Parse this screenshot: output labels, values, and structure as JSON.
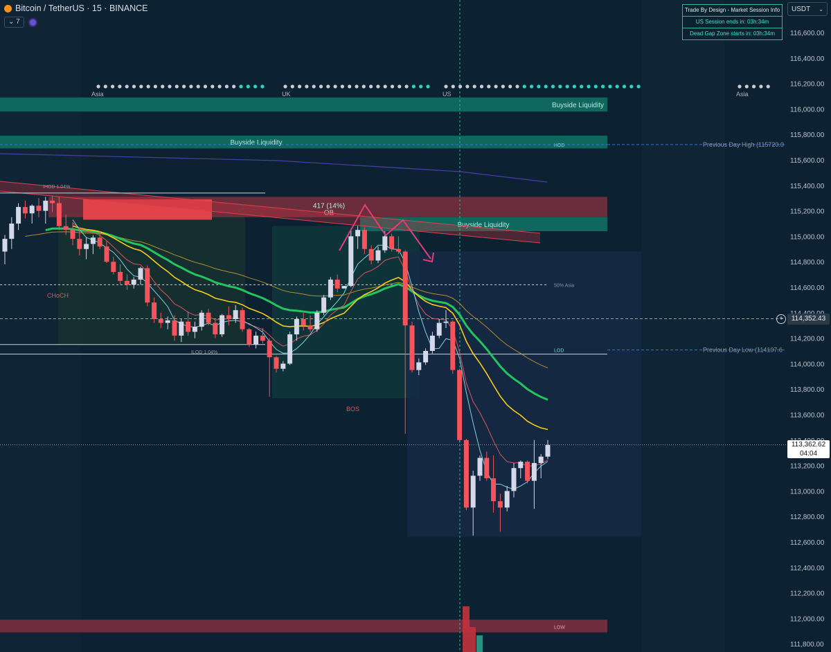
{
  "header": {
    "title": "Bitcoin / TetherUS · 15 · BINANCE",
    "indicator_count": "7"
  },
  "info_box": {
    "title": "Trade By Design - Market Session Info",
    "us_session": "US Session ends in: 03h:34m",
    "dead_gap": "Dead Gap Zone starts in: 03h:34m"
  },
  "currency_select": {
    "value": "USDT"
  },
  "price_tags": {
    "dashed_level": "114,352.43",
    "last_price": "113,362.62",
    "countdown": "04:04"
  },
  "colors": {
    "background": "#0c2233",
    "bull_candle": "#d4d8e8",
    "bear_candle": "#f5545c",
    "ema_green": "#22c55e",
    "ema_yellow": "#facc15",
    "liquidity_teal": "#0f6f63",
    "order_block_red": "#7a2f3e"
  },
  "chart_data": {
    "type": "candlestick",
    "symbol": "Bitcoin / TetherUS",
    "interval": "15",
    "exchange": "BINANCE",
    "ylim": [
      111700,
      116800
    ],
    "y_ticks": [
      "116,600.00",
      "116,400.00",
      "116,200.00",
      "116,000.00",
      "115,800.00",
      "115,600.00",
      "115,400.00",
      "115,200.00",
      "115,000.00",
      "114,800.00",
      "114,600.00",
      "114,400.00",
      "114,200.00",
      "114,000.00",
      "113,800.00",
      "113,600.00",
      "113,400.00",
      "113,200.00",
      "113,000.00",
      "112,800.00",
      "112,600.00",
      "112,400.00",
      "112,200.00",
      "112,000.00",
      "111,800.00"
    ],
    "sessions": [
      "Asia",
      "UK",
      "US",
      "Asia"
    ],
    "candles": [
      {
        "o": 114880,
        "h": 115010,
        "l": 114780,
        "c": 114980
      },
      {
        "o": 114980,
        "h": 115150,
        "l": 114900,
        "c": 115100
      },
      {
        "o": 115100,
        "h": 115260,
        "l": 115050,
        "c": 115230
      },
      {
        "o": 115230,
        "h": 115280,
        "l": 115140,
        "c": 115180
      },
      {
        "o": 115180,
        "h": 115250,
        "l": 115100,
        "c": 115240
      },
      {
        "o": 115240,
        "h": 115300,
        "l": 115150,
        "c": 115200
      },
      {
        "o": 115200,
        "h": 115310,
        "l": 115100,
        "c": 115280
      },
      {
        "o": 115280,
        "h": 115320,
        "l": 115190,
        "c": 115260
      },
      {
        "o": 115260,
        "h": 115310,
        "l": 115050,
        "c": 115080
      },
      {
        "o": 115080,
        "h": 115170,
        "l": 115010,
        "c": 115050
      },
      {
        "o": 115050,
        "h": 115110,
        "l": 114930,
        "c": 114980
      },
      {
        "o": 114980,
        "h": 115060,
        "l": 114850,
        "c": 114900
      },
      {
        "o": 114900,
        "h": 114990,
        "l": 114820,
        "c": 114940
      },
      {
        "o": 114940,
        "h": 115010,
        "l": 114860,
        "c": 114990
      },
      {
        "o": 114990,
        "h": 115040,
        "l": 114900,
        "c": 114920
      },
      {
        "o": 114920,
        "h": 114960,
        "l": 114790,
        "c": 114800
      },
      {
        "o": 114800,
        "h": 114840,
        "l": 114700,
        "c": 114720
      },
      {
        "o": 114720,
        "h": 114780,
        "l": 114620,
        "c": 114650
      },
      {
        "o": 114650,
        "h": 114700,
        "l": 114580,
        "c": 114620
      },
      {
        "o": 114620,
        "h": 114680,
        "l": 114590,
        "c": 114660
      },
      {
        "o": 114660,
        "h": 114760,
        "l": 114620,
        "c": 114750
      },
      {
        "o": 114750,
        "h": 114770,
        "l": 114450,
        "c": 114480
      },
      {
        "o": 114480,
        "h": 114520,
        "l": 114320,
        "c": 114350
      },
      {
        "o": 114350,
        "h": 114400,
        "l": 114280,
        "c": 114320
      },
      {
        "o": 114320,
        "h": 114370,
        "l": 114270,
        "c": 114340
      },
      {
        "o": 114340,
        "h": 114380,
        "l": 114180,
        "c": 114220
      },
      {
        "o": 114220,
        "h": 114350,
        "l": 114170,
        "c": 114330
      },
      {
        "o": 114330,
        "h": 114410,
        "l": 114220,
        "c": 114250
      },
      {
        "o": 114250,
        "h": 114330,
        "l": 114200,
        "c": 114290
      },
      {
        "o": 114290,
        "h": 114420,
        "l": 114260,
        "c": 114400
      },
      {
        "o": 114400,
        "h": 114430,
        "l": 114300,
        "c": 114320
      },
      {
        "o": 114320,
        "h": 114340,
        "l": 114200,
        "c": 114230
      },
      {
        "o": 114230,
        "h": 114390,
        "l": 114210,
        "c": 114380
      },
      {
        "o": 114380,
        "h": 114450,
        "l": 114300,
        "c": 114350
      },
      {
        "o": 114350,
        "h": 114460,
        "l": 114320,
        "c": 114420
      },
      {
        "o": 114420,
        "h": 114440,
        "l": 114250,
        "c": 114270
      },
      {
        "o": 114270,
        "h": 114280,
        "l": 114130,
        "c": 114150
      },
      {
        "o": 114150,
        "h": 114250,
        "l": 114120,
        "c": 114220
      },
      {
        "o": 114220,
        "h": 114280,
        "l": 114160,
        "c": 114180
      },
      {
        "o": 114180,
        "h": 114200,
        "l": 113740,
        "c": 114050
      },
      {
        "o": 114050,
        "h": 114060,
        "l": 113930,
        "c": 113960
      },
      {
        "o": 113960,
        "h": 114020,
        "l": 113940,
        "c": 114000
      },
      {
        "o": 114000,
        "h": 114250,
        "l": 113990,
        "c": 114230
      },
      {
        "o": 114230,
        "h": 114370,
        "l": 114180,
        "c": 114350
      },
      {
        "o": 114350,
        "h": 114400,
        "l": 114260,
        "c": 114300
      },
      {
        "o": 114300,
        "h": 114380,
        "l": 114250,
        "c": 114270
      },
      {
        "o": 114270,
        "h": 114420,
        "l": 114250,
        "c": 114400
      },
      {
        "o": 114400,
        "h": 114540,
        "l": 114380,
        "c": 114520
      },
      {
        "o": 114520,
        "h": 114680,
        "l": 114500,
        "c": 114660
      },
      {
        "o": 114660,
        "h": 114700,
        "l": 114560,
        "c": 114590
      },
      {
        "o": 114590,
        "h": 114610,
        "l": 114590,
        "c": 114610
      },
      {
        "o": 114610,
        "h": 115060,
        "l": 114600,
        "c": 115000
      },
      {
        "o": 115000,
        "h": 115080,
        "l": 114900,
        "c": 115050
      },
      {
        "o": 115050,
        "h": 115070,
        "l": 114860,
        "c": 114900
      },
      {
        "o": 114900,
        "h": 114930,
        "l": 114780,
        "c": 114810
      },
      {
        "o": 114810,
        "h": 114920,
        "l": 114790,
        "c": 114890
      },
      {
        "o": 114890,
        "h": 115040,
        "l": 114870,
        "c": 115000
      },
      {
        "o": 115000,
        "h": 115020,
        "l": 114880,
        "c": 114900
      },
      {
        "o": 114900,
        "h": 115000,
        "l": 114860,
        "c": 114880
      },
      {
        "o": 114880,
        "h": 114890,
        "l": 113450,
        "c": 114300
      },
      {
        "o": 114300,
        "h": 114330,
        "l": 113930,
        "c": 113950
      },
      {
        "o": 113950,
        "h": 114040,
        "l": 113910,
        "c": 114010
      },
      {
        "o": 114010,
        "h": 114120,
        "l": 113990,
        "c": 114100
      },
      {
        "o": 114100,
        "h": 114250,
        "l": 114080,
        "c": 114220
      },
      {
        "o": 114220,
        "h": 114350,
        "l": 114200,
        "c": 114320
      },
      {
        "o": 114320,
        "h": 114420,
        "l": 114280,
        "c": 114330
      },
      {
        "o": 114330,
        "h": 114340,
        "l": 113920,
        "c": 113950
      },
      {
        "o": 113950,
        "h": 113960,
        "l": 113380,
        "c": 113400
      },
      {
        "o": 113400,
        "h": 113410,
        "l": 112850,
        "c": 112870
      },
      {
        "o": 112870,
        "h": 113160,
        "l": 112650,
        "c": 113120
      },
      {
        "o": 113120,
        "h": 113280,
        "l": 113080,
        "c": 113260
      },
      {
        "o": 113260,
        "h": 113310,
        "l": 113080,
        "c": 113100
      },
      {
        "o": 113100,
        "h": 113280,
        "l": 112830,
        "c": 112920
      },
      {
        "o": 112920,
        "h": 112980,
        "l": 112680,
        "c": 112870
      },
      {
        "o": 112870,
        "h": 113040,
        "l": 112840,
        "c": 113000
      },
      {
        "o": 113000,
        "h": 113220,
        "l": 112950,
        "c": 113180
      },
      {
        "o": 113180,
        "h": 113240,
        "l": 113100,
        "c": 113230
      },
      {
        "o": 113230,
        "h": 113240,
        "l": 113060,
        "c": 113080
      },
      {
        "o": 113080,
        "h": 113400,
        "l": 112860,
        "c": 113220
      },
      {
        "o": 113220,
        "h": 113290,
        "l": 113100,
        "c": 113270
      },
      {
        "o": 113270,
        "h": 113400,
        "l": 113250,
        "c": 113362
      }
    ],
    "zones": [
      {
        "label": "Buyside Liquidity",
        "y_low": 115980,
        "y_high": 116090
      },
      {
        "label": "Buyside Liquidity",
        "y_low": 115690,
        "y_high": 115790
      },
      {
        "label": "Buyside Liquidity",
        "y_low": 115040,
        "y_high": 115150
      },
      {
        "label": "417 (14%)",
        "sublabel": "OB",
        "y_low": 115150,
        "y_high": 115310
      },
      {
        "label": "LOW",
        "y_low": 111890,
        "y_high": 111990
      }
    ],
    "levels": [
      {
        "label": "Previous Day High (115720.0",
        "value": 115720
      },
      {
        "label": "HOD",
        "value": 115720
      },
      {
        "label": "Previous Day Low (114107.6",
        "value": 114107.6
      },
      {
        "label": "LOD",
        "value": 114107.6
      },
      {
        "label": "50% Asia",
        "value": 114620
      },
      {
        "label": "IHOD 1.04%",
        "value": 115340
      },
      {
        "label": "ILOD 1.04%",
        "value": 114150
      }
    ],
    "annotations": [
      "CHoCH",
      "BOS",
      "50% Asia"
    ]
  }
}
